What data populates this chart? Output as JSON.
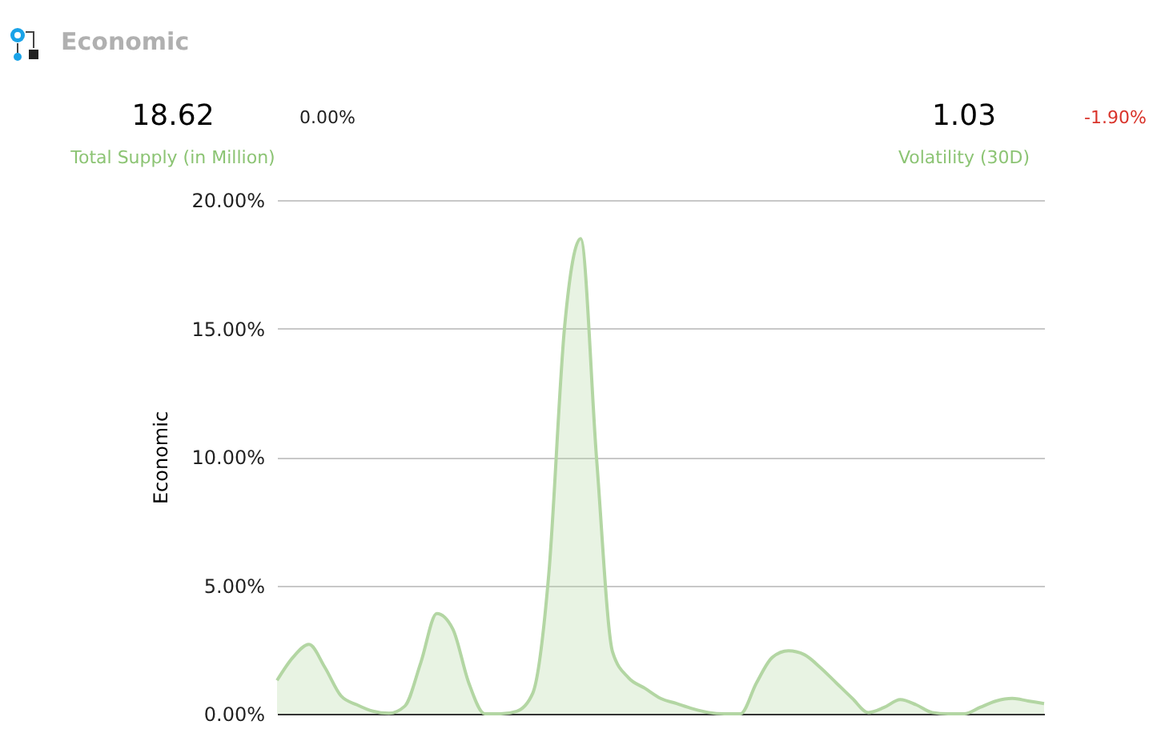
{
  "chart_data": {
    "type": "area",
    "title": "Economic",
    "ylabel": "Economic",
    "annotations": [
      "18.62",
      "Total Supply (in Million)",
      "0.00%",
      "1.03",
      "Volatility (30D)",
      "-1.90%"
    ],
    "categories": [
      null,
      null,
      null,
      null,
      null,
      null,
      null,
      null,
      null,
      null,
      null,
      null,
      null,
      null,
      null,
      null,
      null,
      null,
      null,
      null,
      null,
      null,
      null,
      null,
      null,
      null,
      null,
      null,
      null,
      null,
      null,
      null,
      null,
      null,
      null,
      null,
      null,
      null,
      null,
      null,
      null,
      null,
      null,
      null,
      null,
      null,
      null,
      null,
      null
    ],
    "series": [
      {
        "color": "#b3d6a3",
        "values": [
          1.3,
          2.2,
          2.7,
          1.8,
          0.7,
          0.35,
          0.1,
          0.02,
          0.3,
          2.0,
          3.9,
          3.3,
          1.2,
          0,
          0,
          0.1,
          0.8,
          5.4,
          15.1,
          18.5,
          9.9,
          2.4,
          1.4,
          1.0,
          0.6,
          0.4,
          0.2,
          0.05,
          0,
          0,
          1.2,
          2.2,
          2.45,
          2.3,
          1.8,
          1.2,
          0.6,
          0.05,
          0.25,
          0.55,
          0.35,
          0.05,
          0,
          0,
          0.25,
          0.5,
          0.6,
          0.5,
          0.4
        ]
      }
    ],
    "ylim": [
      0,
      20
    ],
    "yticks": [
      {
        "value": 0,
        "label": "0.00%"
      },
      {
        "value": 5,
        "label": "5.00%"
      },
      {
        "value": 10,
        "label": "10.00%"
      },
      {
        "value": 15,
        "label": "15.00%"
      },
      {
        "value": 20,
        "label": "20.00%"
      }
    ],
    "grid": "y",
    "tick_labels": "y"
  }
}
